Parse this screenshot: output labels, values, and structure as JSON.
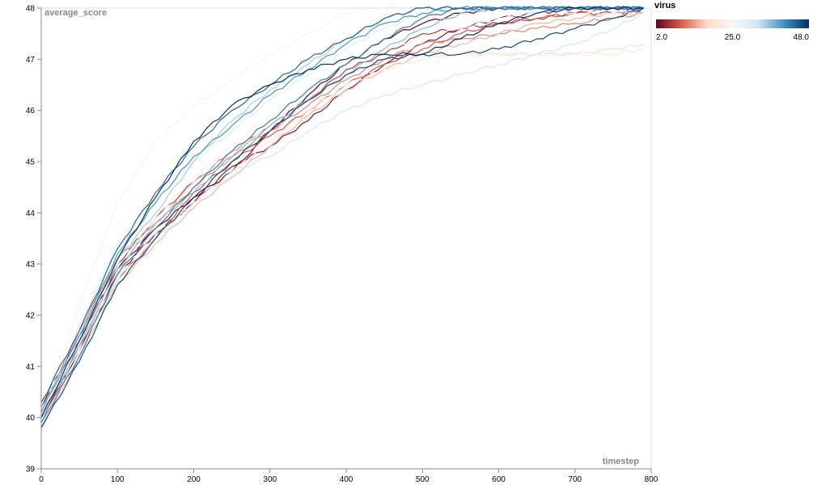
{
  "chart_data": {
    "type": "line",
    "xlabel": "timestep",
    "ylabel": "average_score",
    "xlim": [
      0,
      800
    ],
    "ylim": [
      39,
      48
    ],
    "x_ticks": [
      "0",
      "100",
      "200",
      "300",
      "400",
      "500",
      "600",
      "700",
      "800"
    ],
    "y_ticks": [
      "39",
      "40",
      "41",
      "42",
      "43",
      "44",
      "45",
      "46",
      "47",
      "48"
    ],
    "grid": false,
    "legend": {
      "title": "virus",
      "placement": "top-right",
      "type": "gradient",
      "min_label": "2.0",
      "mid_label": "25.0",
      "max_label": "48.0",
      "min": 2,
      "max": 48,
      "colors": [
        "#67001f",
        "#d6604d",
        "#fddbc7",
        "#f7f7f7",
        "#d1e5f0",
        "#4393c3",
        "#053061"
      ]
    },
    "series": [
      {
        "virus": 2,
        "x": [
          0,
          50,
          100,
          150,
          200,
          250,
          300,
          350,
          400,
          450,
          500,
          550,
          600,
          650,
          700,
          750,
          790
        ],
        "y": [
          40.2,
          41.6,
          42.9,
          43.7,
          44.3,
          44.8,
          45.6,
          46.3,
          46.9,
          47.4,
          47.7,
          47.9,
          48.0,
          48.0,
          48.0,
          48.0,
          48.0
        ]
      },
      {
        "virus": 4,
        "x": [
          0,
          50,
          100,
          150,
          200,
          250,
          300,
          350,
          400,
          450,
          500,
          550,
          600,
          650,
          700,
          750,
          790
        ],
        "y": [
          40.0,
          41.3,
          42.8,
          43.6,
          44.2,
          44.9,
          45.3,
          45.8,
          46.4,
          46.9,
          47.3,
          47.6,
          47.8,
          47.9,
          48.0,
          48.0,
          48.0
        ]
      },
      {
        "virus": 7,
        "x": [
          0,
          50,
          100,
          150,
          200,
          250,
          300,
          350,
          400,
          450,
          500,
          550,
          600,
          650,
          700,
          750,
          790
        ],
        "y": [
          40.3,
          41.5,
          43.0,
          43.9,
          44.6,
          45.2,
          45.7,
          46.2,
          46.8,
          47.1,
          47.5,
          47.6,
          47.7,
          47.8,
          47.9,
          47.9,
          48.0
        ]
      },
      {
        "virus": 9,
        "x": [
          0,
          50,
          100,
          150,
          200,
          250,
          300,
          350,
          400,
          450,
          500,
          550,
          600,
          650,
          700,
          750,
          790
        ],
        "y": [
          39.9,
          41.4,
          42.7,
          43.5,
          44.4,
          45.0,
          45.5,
          46.0,
          46.5,
          46.9,
          47.2,
          47.5,
          47.7,
          47.8,
          47.9,
          48.0,
          48.0
        ]
      },
      {
        "virus": 12,
        "x": [
          0,
          50,
          100,
          150,
          200,
          250,
          300,
          350,
          400,
          450,
          500,
          550,
          600,
          650,
          700,
          750,
          790
        ],
        "y": [
          40.1,
          41.7,
          43.1,
          43.8,
          44.5,
          45.1,
          45.6,
          46.1,
          46.6,
          47.0,
          47.3,
          47.4,
          47.5,
          47.6,
          47.7,
          47.8,
          47.9
        ]
      },
      {
        "virus": 15,
        "x": [
          0,
          50,
          100,
          150,
          200,
          250,
          300,
          350,
          400,
          450,
          500,
          550,
          600,
          650,
          700,
          750,
          790
        ],
        "y": [
          39.8,
          41.2,
          42.6,
          43.4,
          44.1,
          44.7,
          45.3,
          45.9,
          46.4,
          46.8,
          47.1,
          47.3,
          47.5,
          47.7,
          47.8,
          47.9,
          47.9
        ]
      },
      {
        "virus": 18,
        "x": [
          0,
          50,
          100,
          150,
          200,
          250,
          300,
          350,
          400,
          450,
          500,
          550,
          600,
          650,
          700,
          750,
          790
        ],
        "y": [
          40.0,
          41.4,
          42.9,
          43.7,
          44.6,
          45.2,
          45.7,
          46.2,
          46.7,
          47.0,
          47.1,
          47.1,
          47.1,
          47.1,
          47.1,
          47.2,
          47.3
        ]
      },
      {
        "virus": 21,
        "x": [
          0,
          50,
          100,
          150,
          200,
          250,
          300,
          350,
          400,
          450,
          500,
          550,
          600,
          650,
          700,
          750,
          790
        ],
        "y": [
          39.7,
          41.3,
          42.8,
          43.6,
          44.2,
          44.8,
          45.4,
          46.0,
          46.5,
          46.8,
          47.0,
          47.1,
          47.1,
          47.1,
          47.1,
          47.1,
          47.2
        ]
      },
      {
        "virus": 24,
        "x": [
          0,
          50,
          100,
          150,
          200,
          250,
          300,
          350,
          400,
          450,
          500,
          550,
          600,
          650,
          700,
          750,
          790
        ],
        "y": [
          40.1,
          41.6,
          43.0,
          43.9,
          44.7,
          45.3,
          45.9,
          46.4,
          46.9,
          47.2,
          47.4,
          47.6,
          47.8,
          47.9,
          47.9,
          47.9,
          48.0
        ]
      },
      {
        "virus": 26,
        "x": [
          0,
          50,
          100,
          150,
          200,
          250,
          300,
          350,
          400,
          450,
          500,
          550,
          600,
          650,
          700,
          750,
          790
        ],
        "y": [
          40.0,
          42.2,
          44.2,
          45.4,
          46.1,
          46.6,
          47.1,
          47.5,
          47.9,
          48.0,
          48.0,
          48.0,
          48.0,
          48.0,
          48.0,
          48.0,
          48.0
        ]
      },
      {
        "virus": 29,
        "x": [
          0,
          50,
          100,
          150,
          200,
          250,
          300,
          350,
          400,
          450,
          500,
          550,
          600,
          650,
          700,
          750,
          790
        ],
        "y": [
          39.9,
          41.8,
          43.4,
          44.3,
          45.0,
          45.6,
          46.2,
          46.7,
          47.2,
          47.6,
          47.9,
          48.0,
          48.0,
          48.0,
          48.0,
          48.0,
          48.0
        ]
      },
      {
        "virus": 32,
        "x": [
          0,
          50,
          100,
          150,
          200,
          250,
          300,
          350,
          400,
          450,
          500,
          550,
          600,
          650,
          700,
          750,
          790
        ],
        "y": [
          39.8,
          41.3,
          42.7,
          43.5,
          44.2,
          44.8,
          45.1,
          45.6,
          46.0,
          46.3,
          46.5,
          46.7,
          46.9,
          47.1,
          47.3,
          47.6,
          47.9
        ]
      },
      {
        "virus": 35,
        "x": [
          0,
          50,
          100,
          150,
          200,
          250,
          300,
          350,
          400,
          450,
          500,
          550,
          600,
          650,
          700,
          750,
          790
        ],
        "y": [
          40.2,
          41.5,
          43.1,
          44.0,
          45.0,
          45.8,
          46.4,
          46.9,
          47.4,
          47.8,
          48.0,
          48.0,
          48.0,
          48.0,
          48.0,
          48.0,
          48.0
        ]
      },
      {
        "virus": 37,
        "x": [
          0,
          50,
          100,
          150,
          200,
          250,
          300,
          350,
          400,
          450,
          500,
          550,
          600,
          650,
          700,
          750,
          790
        ],
        "y": [
          40.0,
          41.4,
          42.9,
          43.8,
          44.4,
          45.1,
          45.7,
          46.2,
          46.7,
          47.2,
          47.6,
          47.9,
          48.0,
          48.0,
          48.0,
          48.0,
          48.0
        ]
      },
      {
        "virus": 40,
        "x": [
          0,
          50,
          100,
          150,
          200,
          250,
          300,
          350,
          400,
          450,
          500,
          550,
          600,
          650,
          700,
          750,
          790
        ],
        "y": [
          40.1,
          41.6,
          43.2,
          44.2,
          45.1,
          45.7,
          46.3,
          46.8,
          47.3,
          47.7,
          47.9,
          48.0,
          48.0,
          48.0,
          48.0,
          48.0,
          48.0
        ]
      },
      {
        "virus": 42,
        "x": [
          0,
          50,
          100,
          150,
          200,
          250,
          300,
          350,
          400,
          450,
          500,
          550,
          600,
          650,
          700,
          750,
          790
        ],
        "y": [
          39.9,
          41.2,
          42.8,
          43.7,
          44.5,
          45.2,
          45.8,
          46.4,
          46.9,
          47.4,
          47.8,
          48.0,
          48.0,
          48.0,
          48.0,
          48.0,
          48.0
        ]
      },
      {
        "virus": 44,
        "x": [
          0,
          50,
          100,
          150,
          200,
          250,
          300,
          350,
          400,
          450,
          500,
          550,
          600,
          650,
          700,
          750,
          790
        ],
        "y": [
          40.3,
          41.7,
          43.3,
          44.4,
          45.3,
          46.0,
          46.5,
          47.0,
          47.4,
          47.8,
          48.0,
          48.0,
          48.0,
          48.0,
          48.0,
          48.0,
          48.0
        ]
      },
      {
        "virus": 46,
        "x": [
          0,
          50,
          100,
          150,
          200,
          250,
          300,
          350,
          400,
          450,
          500,
          550,
          600,
          650,
          700,
          750,
          790
        ],
        "y": [
          39.8,
          41.1,
          42.6,
          43.5,
          44.3,
          45.0,
          45.6,
          46.2,
          46.7,
          47.0,
          47.1,
          47.1,
          47.2,
          47.4,
          47.6,
          47.8,
          48.0
        ]
      },
      {
        "virus": 48,
        "x": [
          0,
          50,
          100,
          150,
          200,
          250,
          300,
          350,
          400,
          450,
          500,
          550,
          600,
          650,
          700,
          750,
          790
        ],
        "y": [
          40.0,
          41.5,
          43.1,
          44.3,
          45.4,
          46.1,
          46.5,
          46.8,
          47.0,
          47.1,
          47.1,
          47.4,
          47.7,
          47.9,
          48.0,
          48.0,
          48.0
        ]
      }
    ]
  }
}
